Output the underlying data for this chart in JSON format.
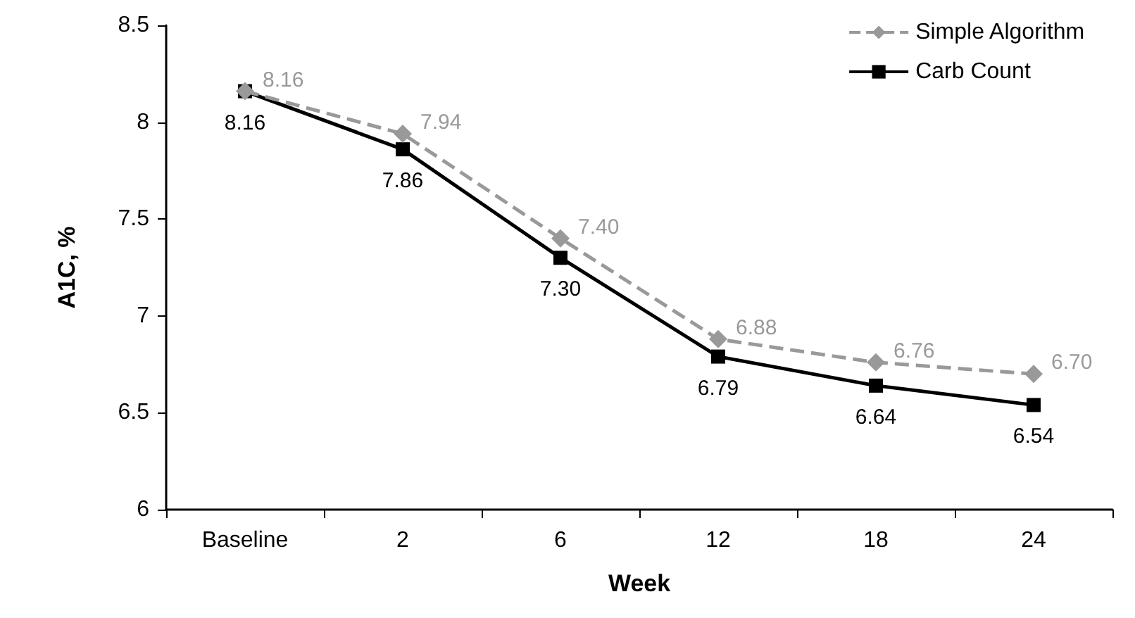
{
  "chart_data": {
    "type": "line",
    "xlabel": "Week",
    "ylabel": "A1C, %",
    "categories": [
      "Baseline",
      "2",
      "6",
      "12",
      "18",
      "24"
    ],
    "series": [
      {
        "name": "Simple Algorithm",
        "color": "#999999",
        "marker": "diamond",
        "line_style": "dashed",
        "values": [
          8.16,
          7.94,
          7.4,
          6.88,
          6.76,
          6.7
        ],
        "value_labels": [
          "8.16",
          "7.94",
          "7.40",
          "6.88",
          "6.76",
          "6.70"
        ]
      },
      {
        "name": "Carb Count",
        "color": "#000000",
        "marker": "square",
        "line_style": "solid",
        "values": [
          8.16,
          7.86,
          7.3,
          6.79,
          6.64,
          6.54
        ],
        "value_labels": [
          "8.16",
          "7.86",
          "7.30",
          "6.79",
          "6.64",
          "6.54"
        ]
      }
    ],
    "ylim": [
      6,
      8.5
    ],
    "yticks": [
      6,
      6.5,
      7,
      7.5,
      8,
      8.5
    ],
    "grid": false,
    "legend": "top right"
  }
}
